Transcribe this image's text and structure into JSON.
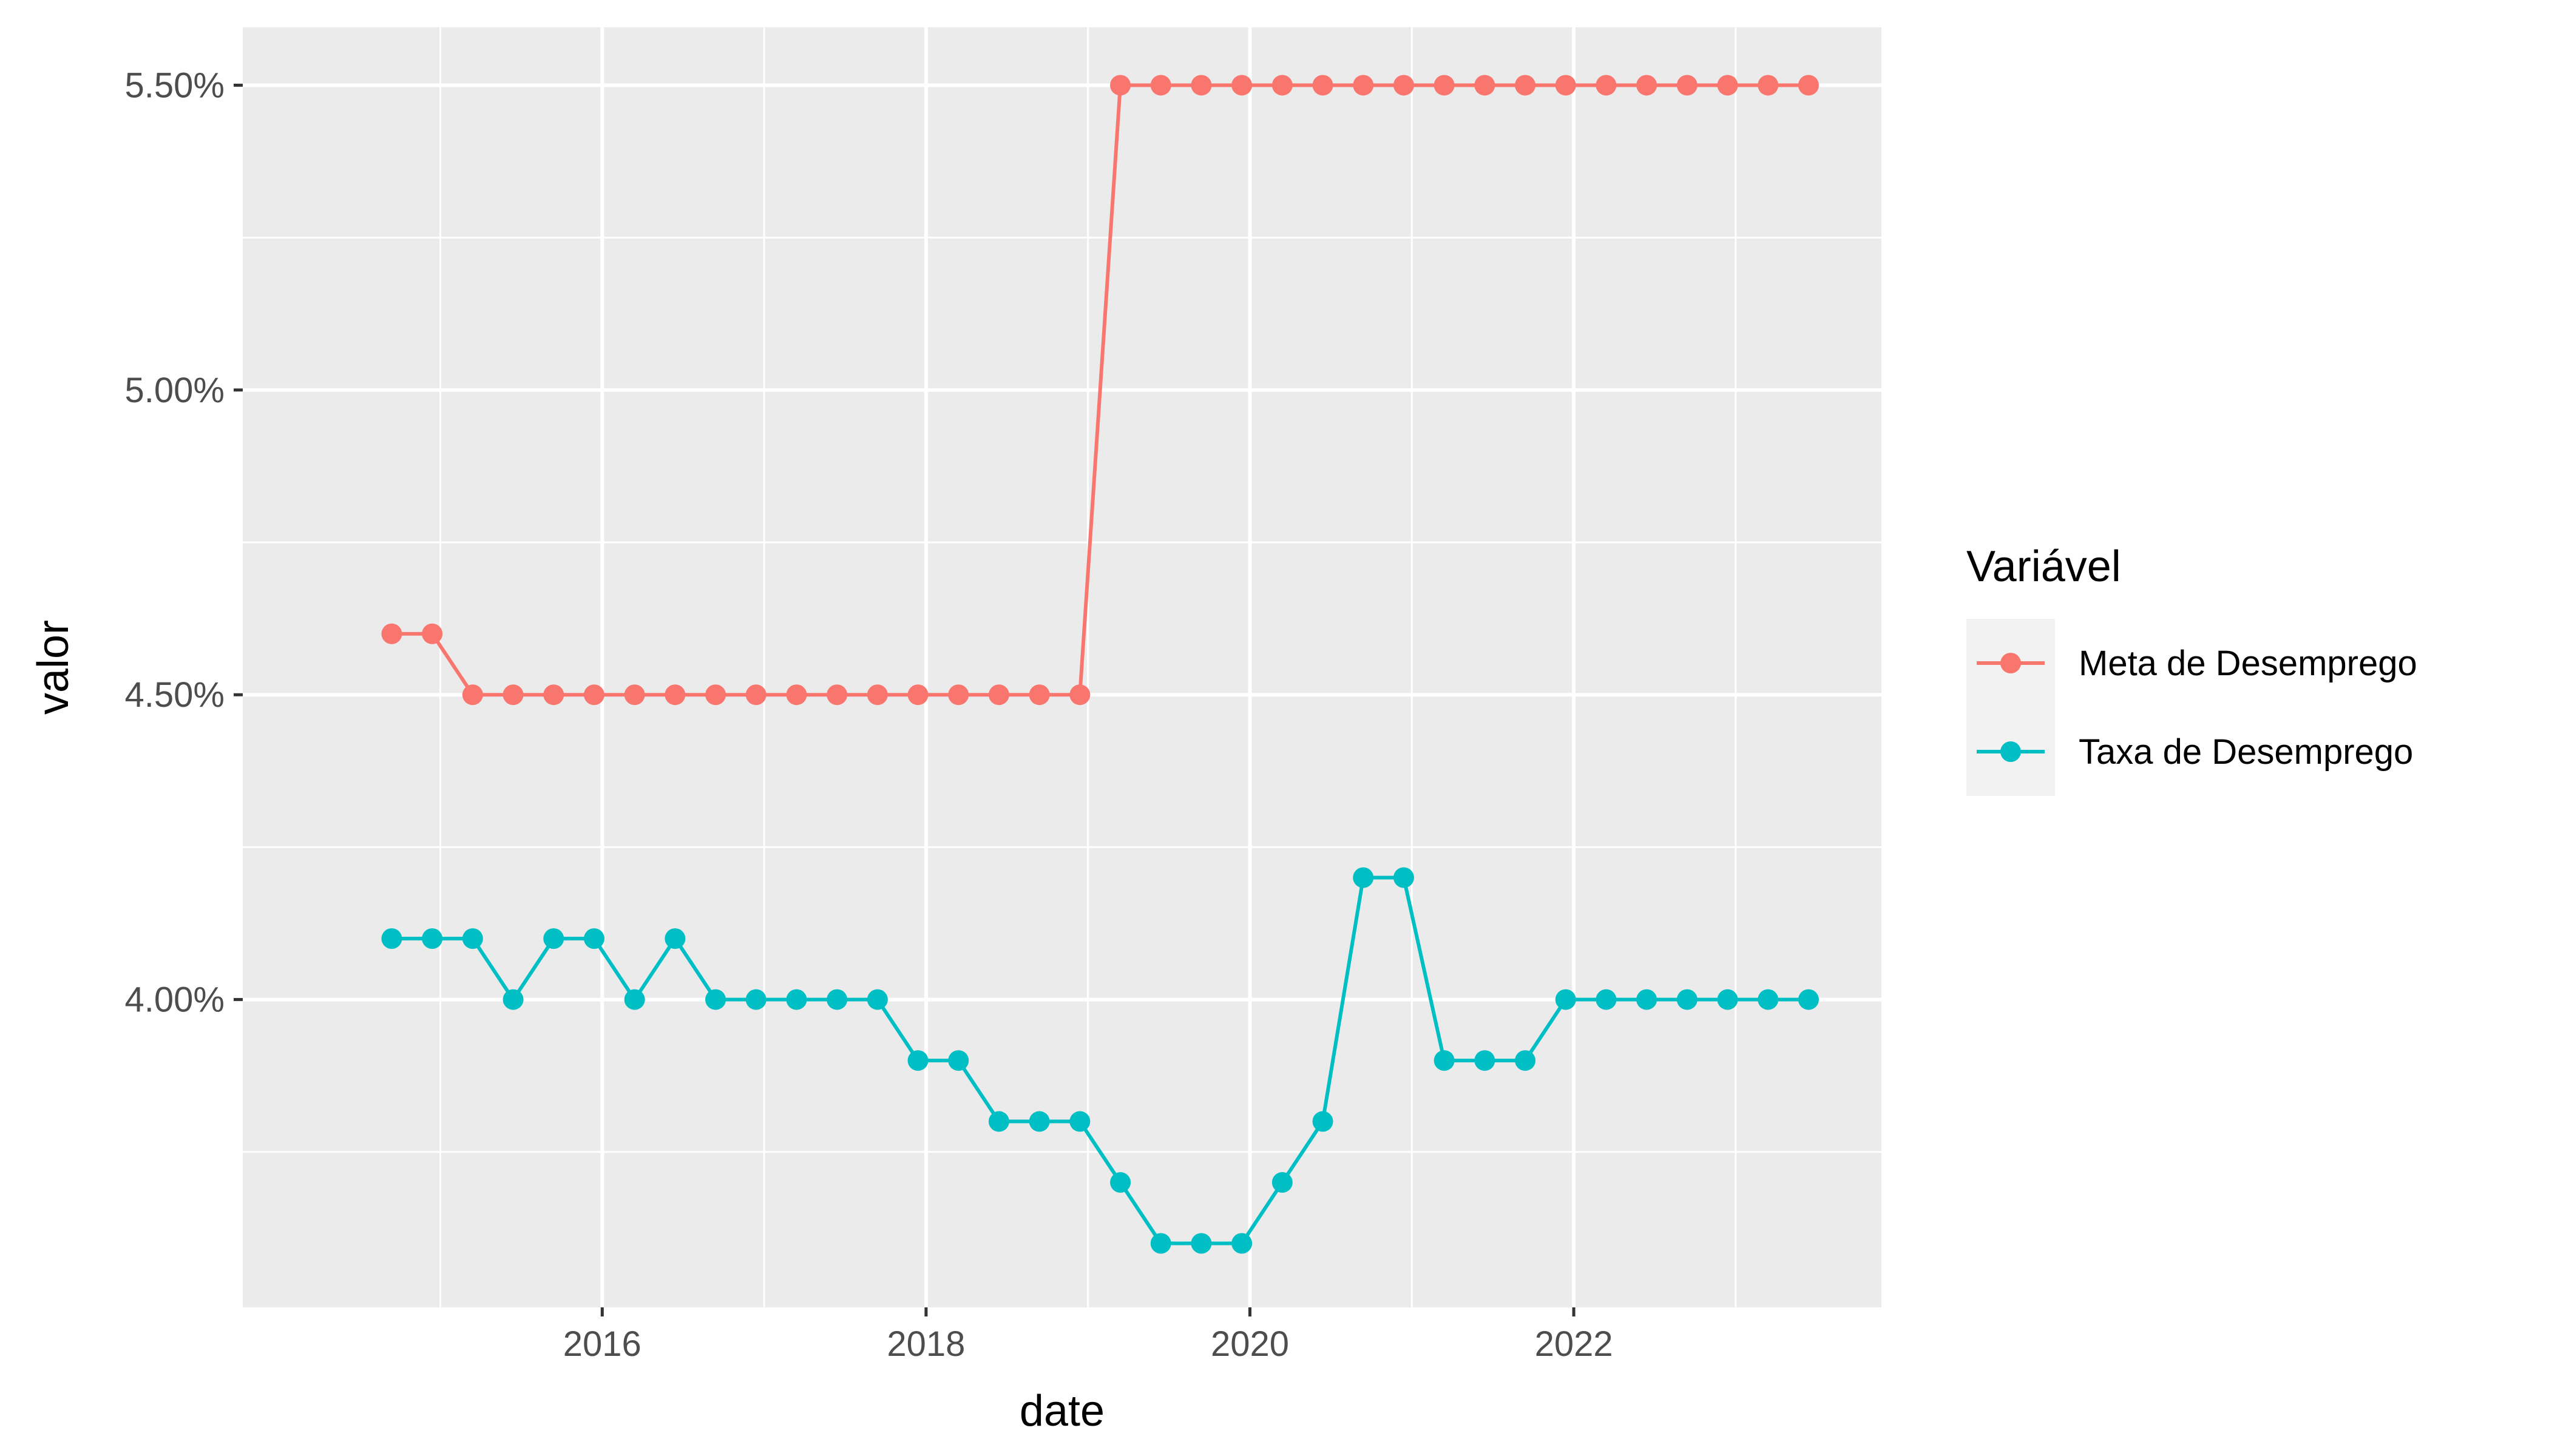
{
  "chart_data": {
    "type": "line",
    "xlabel": "date",
    "ylabel": "valor",
    "x_ticks": [
      {
        "value": 2016,
        "label": "2016"
      },
      {
        "value": 2018,
        "label": "2018"
      },
      {
        "value": 2020,
        "label": "2020"
      },
      {
        "value": 2022,
        "label": "2022"
      }
    ],
    "y_ticks": [
      {
        "value": 4.0,
        "label": "4.00%"
      },
      {
        "value": 4.5,
        "label": "4.50%"
      },
      {
        "value": 5.0,
        "label": "5.00%"
      },
      {
        "value": 5.5,
        "label": "5.50%"
      }
    ],
    "xlim": [
      2013.78,
      2023.9
    ],
    "ylim": [
      3.495,
      5.595
    ],
    "grid": true,
    "legend": {
      "title": "Variável",
      "position": "right"
    },
    "x": [
      2014.7,
      2014.95,
      2015.2,
      2015.45,
      2015.7,
      2015.95,
      2016.2,
      2016.45,
      2016.7,
      2016.95,
      2017.2,
      2017.45,
      2017.7,
      2017.95,
      2018.2,
      2018.45,
      2018.7,
      2018.95,
      2019.2,
      2019.45,
      2019.7,
      2019.95,
      2020.2,
      2020.45,
      2020.7,
      2020.95,
      2021.2,
      2021.45,
      2021.7,
      2021.95,
      2022.2,
      2022.45,
      2022.7,
      2022.95,
      2023.2,
      2023.45
    ],
    "series": [
      {
        "name": "Meta de Desemprego",
        "color": "#F8766D",
        "values": [
          4.6,
          4.6,
          4.5,
          4.5,
          4.5,
          4.5,
          4.5,
          4.5,
          4.5,
          4.5,
          4.5,
          4.5,
          4.5,
          4.5,
          4.5,
          4.5,
          4.5,
          4.5,
          5.5,
          5.5,
          5.5,
          5.5,
          5.5,
          5.5,
          5.5,
          5.5,
          5.5,
          5.5,
          5.5,
          5.5,
          5.5,
          5.5,
          5.5,
          5.5,
          5.5,
          5.5
        ]
      },
      {
        "name": "Taxa de Desemprego",
        "color": "#00BFC4",
        "values": [
          4.1,
          4.1,
          4.1,
          4.0,
          4.1,
          4.1,
          4.0,
          4.1,
          4.0,
          4.0,
          4.0,
          4.0,
          4.0,
          3.9,
          3.9,
          3.8,
          3.8,
          3.8,
          3.7,
          3.6,
          3.6,
          3.6,
          3.7,
          3.8,
          4.2,
          4.2,
          3.9,
          3.9,
          3.9,
          4.0,
          4.0,
          4.0,
          4.0,
          4.0,
          4.0,
          4.0
        ]
      }
    ]
  }
}
